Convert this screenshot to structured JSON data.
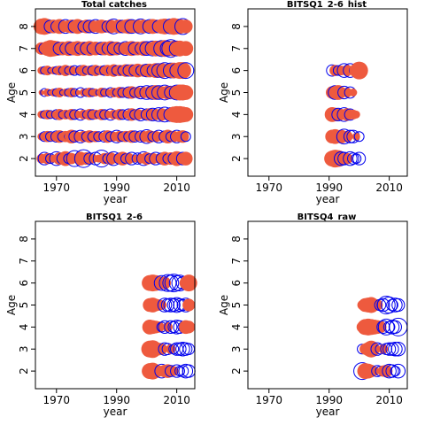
{
  "colors": {
    "positive": "#EE5A3E",
    "negative": "#0000EE",
    "frame": "#000000"
  },
  "chart_data": [
    {
      "type": "scatter",
      "title": "Total catches",
      "xlabel": "year",
      "ylabel": "Age",
      "xlim": [
        1963,
        2016
      ],
      "ylim": [
        1.2,
        8.8
      ],
      "xticks": [
        1970,
        1990,
        2010
      ],
      "yticks": [
        2,
        3,
        4,
        5,
        6,
        7,
        8
      ],
      "ages": [
        2,
        3,
        4,
        5,
        6,
        7,
        8
      ],
      "years": [
        1965,
        1966,
        1967,
        1968,
        1969,
        1970,
        1971,
        1972,
        1973,
        1974,
        1975,
        1976,
        1977,
        1978,
        1979,
        1980,
        1981,
        1982,
        1983,
        1984,
        1985,
        1986,
        1987,
        1988,
        1989,
        1990,
        1991,
        1992,
        1993,
        1994,
        1995,
        1996,
        1997,
        1998,
        1999,
        2000,
        2001,
        2002,
        2003,
        2004,
        2005,
        2006,
        2007,
        2008,
        2009,
        2010,
        2011,
        2012,
        2013
      ],
      "residuals": [
        [
          0.3,
          -0.5,
          0.4,
          -0.3,
          0.2,
          -0.6,
          0.5,
          -0.4,
          0.7,
          -0.3,
          0.4,
          -0.8,
          0.3,
          0.6,
          -1.0,
          0.5,
          -0.4,
          0.3,
          -0.5,
          0.2,
          -0.9,
          0.4,
          -0.3,
          0.5,
          -0.6,
          0.3,
          -0.4,
          0.6,
          -0.3,
          0.4,
          -0.5,
          0.2,
          -0.4,
          0.3,
          -0.6,
          0.5,
          -0.3,
          0.4,
          -0.5,
          0.3,
          -0.4,
          0.6,
          -0.3,
          0.5,
          -0.4,
          0.7,
          0.4,
          -0.5,
          0.6
        ],
        [
          0.2,
          -0.3,
          0.4,
          -0.3,
          0.3,
          -0.4,
          0.5,
          -0.3,
          0.4,
          -0.2,
          0.6,
          -0.4,
          0.3,
          -0.5,
          0.4,
          -0.3,
          0.5,
          -0.3,
          0.4,
          -0.3,
          0.2,
          -0.4,
          0.5,
          -0.3,
          0.3,
          -0.5,
          0.4,
          -0.3,
          0.4,
          -0.3,
          0.5,
          -0.4,
          0.3,
          -0.4,
          0.4,
          -0.6,
          0.5,
          -0.3,
          0.4,
          -0.5,
          0.3,
          -0.4,
          0.6,
          -0.3,
          0.4,
          -0.5,
          0.4,
          0.5,
          -0.3
        ],
        [
          0.2,
          -0.2,
          0.3,
          -0.2,
          0.2,
          -0.3,
          0.4,
          -0.2,
          0.3,
          -0.2,
          0.4,
          -0.3,
          0.2,
          -0.4,
          0.3,
          -0.2,
          0.4,
          -0.3,
          0.3,
          -0.2,
          0.4,
          -0.3,
          0.2,
          -0.4,
          0.3,
          -0.2,
          0.4,
          -0.3,
          0.2,
          -0.4,
          0.5,
          -0.3,
          0.4,
          -0.5,
          0.3,
          -0.4,
          0.5,
          -0.5,
          0.4,
          -0.6,
          0.5,
          -0.7,
          0.4,
          -0.6,
          0.8,
          0.9,
          0.9,
          0.8,
          0.7
        ],
        [
          0.1,
          -0.2,
          0.2,
          -0.1,
          0.2,
          -0.2,
          0.3,
          -0.1,
          0.2,
          -0.2,
          0.3,
          -0.2,
          0.1,
          -0.3,
          0.2,
          -0.2,
          0.3,
          -0.2,
          0.2,
          -0.1,
          0.3,
          -0.2,
          0.2,
          -0.3,
          0.3,
          -0.2,
          0.4,
          -0.3,
          0.3,
          -0.4,
          0.5,
          -0.3,
          0.4,
          -0.5,
          0.4,
          -0.6,
          0.5,
          -0.6,
          0.7,
          -0.6,
          0.5,
          -0.7,
          0.6,
          -0.5,
          0.6,
          -0.7,
          0.8,
          0.8,
          0.7
        ],
        [
          0.2,
          -0.2,
          0.3,
          -0.1,
          0.2,
          -0.2,
          0.3,
          -0.2,
          0.4,
          -0.2,
          0.3,
          -0.3,
          0.2,
          -0.3,
          0.4,
          -0.2,
          0.3,
          -0.3,
          0.4,
          -0.2,
          0.3,
          -0.3,
          0.4,
          -0.2,
          0.5,
          -0.3,
          0.4,
          -0.3,
          0.5,
          -0.4,
          0.5,
          -0.4,
          0.6,
          -0.3,
          0.5,
          -0.5,
          0.6,
          -0.4,
          0.7,
          -0.6,
          0.7,
          -0.8,
          0.6,
          -0.7,
          0.8,
          -0.6,
          0.9,
          0.9,
          -0.8
        ],
        [
          0.5,
          -0.4,
          0.7,
          0.9,
          0.8,
          0.7,
          -0.5,
          0.6,
          -0.4,
          0.7,
          -0.5,
          0.6,
          0.7,
          -0.4,
          0.6,
          -0.5,
          0.7,
          -0.4,
          0.6,
          0.5,
          -0.5,
          0.6,
          -0.4,
          0.7,
          -0.5,
          0.6,
          -0.4,
          0.5,
          -0.6,
          0.6,
          0.7,
          -0.5,
          0.6,
          -0.4,
          0.7,
          -0.6,
          0.5,
          -0.7,
          0.8,
          0.7,
          -0.8,
          0.9,
          -0.7,
          -1.0,
          0.8,
          -0.7,
          0.8,
          0.6,
          0.7
        ],
        [
          0.8,
          0.9,
          0.7,
          -0.5,
          0.6,
          -0.4,
          0.7,
          0.5,
          -0.6,
          0.5,
          0.6,
          -0.5,
          0.7,
          0.5,
          -0.4,
          0.6,
          -0.5,
          0.5,
          -0.6,
          0.5,
          0.6,
          0.5,
          -0.4,
          0.6,
          -0.7,
          0.5,
          0.6,
          -0.5,
          0.6,
          0.7,
          -0.6,
          0.5,
          0.6,
          -0.7,
          0.6,
          0.5,
          -0.6,
          0.7,
          0.6,
          -0.5,
          0.7,
          0.8,
          0.6,
          -0.7,
          0.9,
          0.8,
          0.7,
          -0.8,
          0.6
        ]
      ]
    },
    {
      "type": "scatter",
      "title": "BITSQ1_2-6_hist",
      "xlabel": "year",
      "ylabel": "Age",
      "xlim": [
        1963,
        2016
      ],
      "ylim": [
        1.2,
        8.8
      ],
      "xticks": [
        1970,
        1990,
        2010
      ],
      "yticks": [
        2,
        3,
        4,
        5,
        6,
        7,
        8
      ],
      "ages": [
        2,
        3,
        4,
        5,
        6
      ],
      "years": [
        1991,
        1992,
        1993,
        1994,
        1995,
        1996,
        1997,
        1998,
        1999,
        2000
      ],
      "residuals": [
        [
          0.8,
          1.0,
          0.9,
          -0.6,
          -0.5,
          0.4,
          -0.6,
          -0.4,
          -0.3,
          -0.5
        ],
        [
          0.6,
          0.7,
          0.5,
          0.6,
          -0.7,
          0.4,
          -0.5,
          -0.5,
          0.2,
          -0.3
        ],
        [
          0.7,
          0.6,
          -0.5,
          0.4,
          -0.6,
          0.5,
          -0.4,
          0.3,
          0.2,
          0.0
        ],
        [
          0.5,
          -0.6,
          0.7,
          0.4,
          -0.5,
          0.3,
          -0.4,
          0.2,
          0.0,
          0.0
        ],
        [
          -0.4,
          0.4,
          -0.3,
          0.3,
          -0.6,
          0.4,
          -0.6,
          -0.2,
          0.6,
          1.0
        ]
      ]
    },
    {
      "type": "scatter",
      "title": "BITSQ1_2-6",
      "xlabel": "year",
      "ylabel": "Age",
      "xlim": [
        1963,
        2016
      ],
      "ylim": [
        1.2,
        8.8
      ],
      "xticks": [
        1970,
        1990,
        2010
      ],
      "yticks": [
        2,
        3,
        4,
        5,
        6,
        7,
        8
      ],
      "ages": [
        2,
        3,
        4,
        5,
        6
      ],
      "years": [
        2001,
        2002,
        2003,
        2004,
        2005,
        2006,
        2007,
        2008,
        2009,
        2010,
        2011,
        2012,
        2013,
        2014
      ],
      "residuals": [
        [
          0.8,
          0.9,
          0.6,
          0.4,
          -0.6,
          0.5,
          0.6,
          -0.4,
          0.3,
          -0.5,
          -0.3,
          -0.4,
          -0.6,
          -0.5
        ],
        [
          0.9,
          1.0,
          0.6,
          0.5,
          0.4,
          -0.5,
          -0.4,
          0.3,
          -0.3,
          -0.5,
          -0.5,
          -0.6,
          -0.5,
          -0.4
        ],
        [
          0.7,
          0.6,
          0.5,
          0.4,
          -0.3,
          -0.5,
          0.3,
          -0.5,
          -0.4,
          -0.6,
          -0.5,
          -0.3,
          0.6,
          0.5
        ],
        [
          0.6,
          0.7,
          0.5,
          0.4,
          0.3,
          -0.6,
          -0.5,
          -0.6,
          -0.5,
          -0.7,
          -0.5,
          -0.4,
          -0.6,
          0.5
        ],
        [
          0.8,
          0.9,
          0.8,
          0.6,
          -0.7,
          0.5,
          -0.9,
          -0.8,
          -1.0,
          -0.7,
          -0.8,
          -0.5,
          0.5,
          0.9
        ]
      ]
    },
    {
      "type": "scatter",
      "title": "BITSQ4_raw",
      "xlabel": "year",
      "ylabel": "Age",
      "xlim": [
        1963,
        2016
      ],
      "ylim": [
        1.2,
        8.8
      ],
      "xticks": [
        1970,
        1990,
        2010
      ],
      "yticks": [
        2,
        3,
        4,
        5,
        6,
        7,
        8
      ],
      "ages": [
        2,
        3,
        4,
        5,
        6
      ],
      "years": [
        2001,
        2002,
        2003,
        2004,
        2005,
        2006,
        2007,
        2008,
        2009,
        2010,
        2011,
        2012,
        2013
      ],
      "residuals": [
        [
          -0.9,
          0.8,
          0.7,
          0.5,
          0.3,
          -0.4,
          -0.3,
          0.4,
          0.5,
          -0.6,
          -0.5,
          -0.3,
          -0.6
        ],
        [
          -0.3,
          0.4,
          0.6,
          0.9,
          0.3,
          -0.5,
          -0.3,
          0.3,
          -0.4,
          -0.5,
          -0.5,
          -0.6,
          -0.6
        ],
        [
          0.4,
          0.8,
          0.9,
          0.8,
          0.7,
          0.6,
          0.5,
          -0.5,
          -0.8,
          -0.4,
          -0.6,
          -0.5,
          -1.0
        ],
        [
          0.3,
          0.6,
          0.7,
          0.8,
          0.5,
          0.4,
          -0.4,
          -0.5,
          -1.0,
          -0.8,
          -0.4,
          -0.6,
          -0.5
        ],
        [
          0.0,
          0.0,
          0.0,
          0.0,
          0.0,
          0.0,
          0.0,
          0.0,
          0.0,
          0.0,
          0.0,
          0.0,
          0.0
        ]
      ]
    }
  ]
}
